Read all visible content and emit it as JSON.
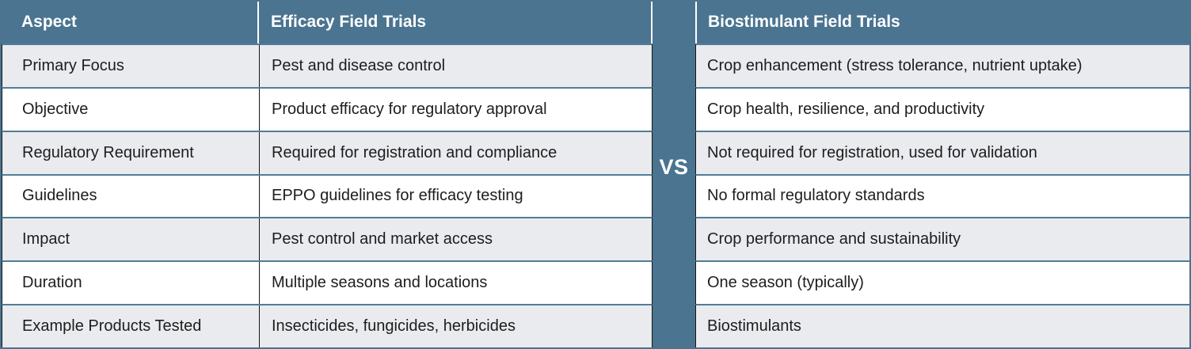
{
  "colors": {
    "teal": "#4a7490",
    "row_border": "#527d98",
    "column_border": "#161616",
    "alt_row_bg": "#e9ebee",
    "row_bg": "#ffffff",
    "header_text": "#ffffff",
    "body_text": "#1d1d1d"
  },
  "divider": {
    "label": "VS"
  },
  "left_table": {
    "headers": {
      "aspect": "Aspect",
      "trials": "Efficacy Field Trials"
    },
    "rows": [
      [
        "Primary Focus",
        "Pest and disease control"
      ],
      [
        "Objective",
        "Product efficacy for regulatory approval"
      ],
      [
        "Regulatory Requirement",
        "Required for registration and compliance"
      ],
      [
        "Guidelines",
        "EPPO guidelines for efficacy testing"
      ],
      [
        "Impact",
        "Pest control and market access"
      ],
      [
        "Duration",
        "Multiple seasons and locations"
      ],
      [
        "Example Products Tested",
        "Insecticides, fungicides, herbicides"
      ]
    ]
  },
  "right_table": {
    "header": "Biostimulant Field Trials",
    "rows": [
      "Crop enhancement (stress tolerance, nutrient uptake)",
      "Crop health, resilience, and productivity",
      "Not required for registration, used for validation",
      "No formal regulatory standards",
      "Crop performance and sustainability",
      "One season (typically)",
      "Biostimulants"
    ]
  }
}
